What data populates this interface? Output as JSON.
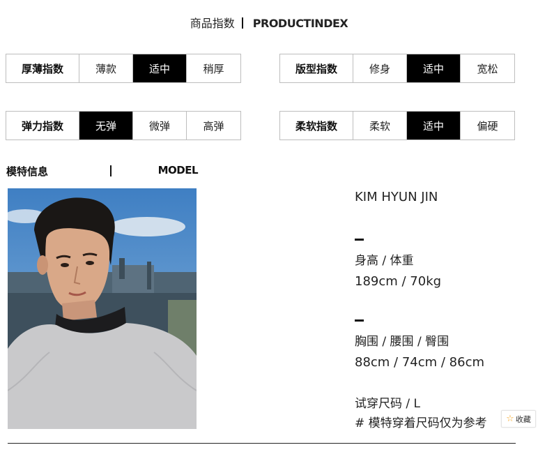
{
  "header": {
    "title_cn": "商品指数",
    "title_en": "PRODUCTINDEX"
  },
  "indices": [
    {
      "label": "厚薄指数",
      "options": [
        "薄款",
        "适中",
        "稍厚"
      ],
      "selected": 1
    },
    {
      "label": "版型指数",
      "options": [
        "修身",
        "适中",
        "宽松"
      ],
      "selected": 1
    },
    {
      "label": "弹力指数",
      "options": [
        "无弹",
        "微弹",
        "高弹"
      ],
      "selected": 0
    },
    {
      "label": "柔软指数",
      "options": [
        "柔软",
        "适中",
        "偏硬"
      ],
      "selected": 1
    }
  ],
  "model": {
    "header_cn": "模特信息",
    "header_en": "MODEL",
    "name": "KIM HYUN JIN",
    "height_weight_label": "身高 / 体重",
    "height_weight_value": "189cm / 70kg",
    "measurements_label": "胸围 / 腰围 / 臀围",
    "measurements_value": "88cm / 74cm / 86cm",
    "size_label": "试穿尺码 / L",
    "note": "# 模特穿着尺码仅为参考"
  },
  "favorite_button": {
    "label": "收藏",
    "icon": "star-icon"
  },
  "colors": {
    "selected_bg": "#000000",
    "border": "#bdbdbd",
    "star": "#f5a623"
  }
}
